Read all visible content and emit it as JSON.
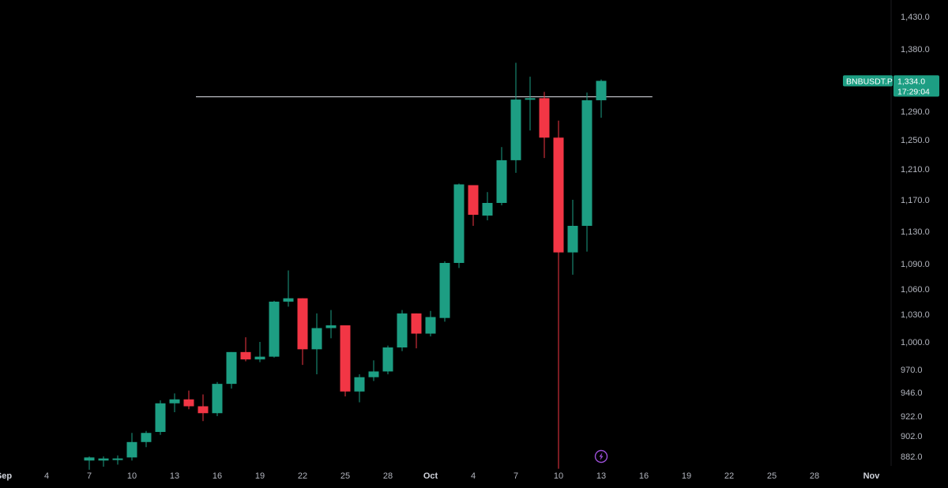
{
  "chart_data": {
    "type": "candlestick",
    "symbol": "BNBUSDT.P",
    "last_price": "1,334.0",
    "countdown": "17:29:04",
    "colors": {
      "up": "#1d9e83",
      "down": "#f23645",
      "background": "#000000",
      "level_line": "#c9cbd1",
      "event_marker": "#9c4fd8"
    },
    "grid": false,
    "y_axis": {
      "position": "right",
      "ticks": [
        "1,430.0",
        "1,380.0",
        "1,290.0",
        "1,250.0",
        "1,210.0",
        "1,170.0",
        "1,130.0",
        "1,090.0",
        "1,060.0",
        "1,030.0",
        "1,000.0",
        "970.0",
        "946.0",
        "922.0",
        "902.0",
        "882.0"
      ],
      "tick_values": [
        1430,
        1380,
        1290,
        1250,
        1210,
        1170,
        1130,
        1090,
        1060,
        1030,
        1000,
        970,
        946,
        922,
        902,
        882
      ],
      "range": [
        868,
        1450
      ]
    },
    "x_axis": {
      "ticks": [
        {
          "label": "Sep",
          "day": -1,
          "month": true
        },
        {
          "label": "4",
          "day": 2
        },
        {
          "label": "7",
          "day": 5
        },
        {
          "label": "10",
          "day": 8
        },
        {
          "label": "13",
          "day": 11
        },
        {
          "label": "16",
          "day": 14
        },
        {
          "label": "19",
          "day": 17
        },
        {
          "label": "22",
          "day": 20
        },
        {
          "label": "25",
          "day": 23
        },
        {
          "label": "28",
          "day": 26
        },
        {
          "label": "Oct",
          "day": 29,
          "month": true
        },
        {
          "label": "4",
          "day": 32
        },
        {
          "label": "7",
          "day": 35
        },
        {
          "label": "10",
          "day": 38
        },
        {
          "label": "13",
          "day": 41
        },
        {
          "label": "16",
          "day": 44
        },
        {
          "label": "19",
          "day": 47
        },
        {
          "label": "22",
          "day": 50
        },
        {
          "label": "25",
          "day": 53
        },
        {
          "label": "28",
          "day": 56
        },
        {
          "label": "Nov",
          "day": 60,
          "month": true
        }
      ],
      "range": [
        -1,
        63
      ]
    },
    "horizontal_line": {
      "price": 1311,
      "from_day": 12.5,
      "to_day": 44.6
    },
    "event_marker": {
      "day": 41,
      "icon": "lightning-icon"
    },
    "candles": [
      {
        "date": "Sep 7",
        "open": 878,
        "high": 882,
        "low": 869,
        "close": 881
      },
      {
        "date": "Sep 8",
        "open": 878,
        "high": 882,
        "low": 872,
        "close": 880
      },
      {
        "date": "Sep 9",
        "open": 879,
        "high": 883,
        "low": 874,
        "close": 880
      },
      {
        "date": "Sep 10",
        "open": 881,
        "high": 905,
        "low": 878,
        "close": 896
      },
      {
        "date": "Sep 11",
        "open": 896,
        "high": 907,
        "low": 891,
        "close": 905
      },
      {
        "date": "Sep 12",
        "open": 906,
        "high": 938,
        "low": 903,
        "close": 935
      },
      {
        "date": "Sep 13",
        "open": 935,
        "high": 945,
        "low": 926,
        "close": 939
      },
      {
        "date": "Sep 14",
        "open": 939,
        "high": 948,
        "low": 929,
        "close": 932
      },
      {
        "date": "Sep 15",
        "open": 932,
        "high": 944,
        "low": 917,
        "close": 925
      },
      {
        "date": "Sep 16",
        "open": 925,
        "high": 957,
        "low": 922,
        "close": 955
      },
      {
        "date": "Sep 17",
        "open": 955,
        "high": 989,
        "low": 950,
        "close": 989
      },
      {
        "date": "Sep 18",
        "open": 989,
        "high": 1005,
        "low": 979,
        "close": 981
      },
      {
        "date": "Sep 19",
        "open": 981,
        "high": 1000,
        "low": 978,
        "close": 984
      },
      {
        "date": "Sep 20",
        "open": 984,
        "high": 1046,
        "low": 983,
        "close": 1045
      },
      {
        "date": "Sep 21",
        "open": 1045,
        "high": 1082,
        "low": 1039,
        "close": 1049
      },
      {
        "date": "Sep 22",
        "open": 1049,
        "high": 1049,
        "low": 975,
        "close": 992
      },
      {
        "date": "Sep 23",
        "open": 992,
        "high": 1031,
        "low": 965,
        "close": 1015
      },
      {
        "date": "Sep 24",
        "open": 1015,
        "high": 1035,
        "low": 1004,
        "close": 1018
      },
      {
        "date": "Sep 25",
        "open": 1018,
        "high": 1018,
        "low": 942,
        "close": 947
      },
      {
        "date": "Sep 26",
        "open": 947,
        "high": 965,
        "low": 936,
        "close": 962
      },
      {
        "date": "Sep 27",
        "open": 962,
        "high": 980,
        "low": 958,
        "close": 968
      },
      {
        "date": "Sep 28",
        "open": 968,
        "high": 996,
        "low": 965,
        "close": 994
      },
      {
        "date": "Sep 29",
        "open": 994,
        "high": 1035,
        "low": 990,
        "close": 1031
      },
      {
        "date": "Sep 30",
        "open": 1031,
        "high": 1031,
        "low": 993,
        "close": 1009
      },
      {
        "date": "Oct 1",
        "open": 1009,
        "high": 1034,
        "low": 1006,
        "close": 1027
      },
      {
        "date": "Oct 2",
        "open": 1026,
        "high": 1093,
        "low": 1022,
        "close": 1091
      },
      {
        "date": "Oct 3",
        "open": 1091,
        "high": 1191,
        "low": 1085,
        "close": 1190
      },
      {
        "date": "Oct 4",
        "open": 1189,
        "high": 1189,
        "low": 1137,
        "close": 1151
      },
      {
        "date": "Oct 5",
        "open": 1150,
        "high": 1180,
        "low": 1144,
        "close": 1166
      },
      {
        "date": "Oct 6",
        "open": 1166,
        "high": 1240,
        "low": 1163,
        "close": 1222
      },
      {
        "date": "Oct 7",
        "open": 1222,
        "high": 1360,
        "low": 1205,
        "close": 1307
      },
      {
        "date": "Oct 8",
        "open": 1307,
        "high": 1340,
        "low": 1263,
        "close": 1309
      },
      {
        "date": "Oct 9",
        "open": 1309,
        "high": 1318,
        "low": 1225,
        "close": 1253
      },
      {
        "date": "Oct 10",
        "open": 1253,
        "high": 1277,
        "low": 870,
        "close": 1104
      },
      {
        "date": "Oct 11",
        "open": 1104,
        "high": 1170,
        "low": 1077,
        "close": 1137
      },
      {
        "date": "Oct 12",
        "open": 1137,
        "high": 1317,
        "low": 1105,
        "close": 1306
      },
      {
        "date": "Oct 13",
        "open": 1306,
        "high": 1336,
        "low": 1281,
        "close": 1334
      }
    ]
  }
}
